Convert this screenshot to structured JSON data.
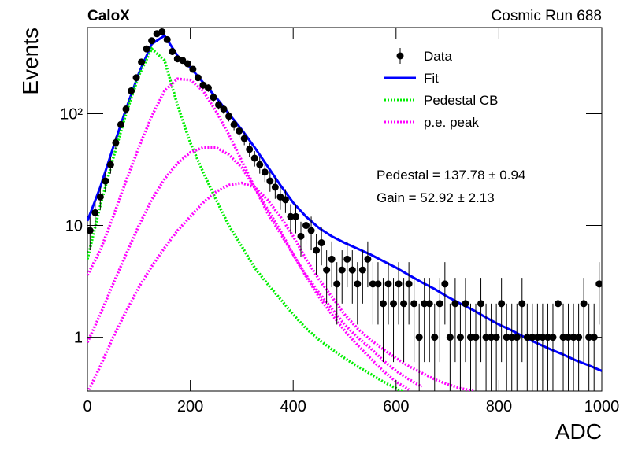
{
  "chart_data": {
    "type": "histogram-fit",
    "title": "CaloX",
    "subtitle": "Cosmic Run 688",
    "x_label": "ADC",
    "y_label": "Events",
    "annotations": [
      "Pedestal = 137.78 ± 0.94",
      "Gain = 52.92 ± 2.13"
    ],
    "log_y": true,
    "xlim": [
      0,
      1000
    ],
    "ylim": [
      0.33,
      590
    ],
    "xticks": [
      0,
      200,
      400,
      600,
      800,
      1000
    ],
    "yticks": [
      1,
      10,
      {
        "value": 100,
        "label": "10²"
      }
    ],
    "series": [
      {
        "name": "Data",
        "style": "points",
        "color": "#000000",
        "x": [
          5,
          15,
          25,
          35,
          45,
          55,
          65,
          75,
          85,
          95,
          105,
          115,
          125,
          135,
          145,
          155,
          165,
          175,
          185,
          195,
          205,
          215,
          225,
          235,
          245,
          255,
          265,
          275,
          285,
          295,
          305,
          315,
          325,
          335,
          345,
          355,
          365,
          375,
          385,
          395,
          405,
          415,
          425,
          435,
          445,
          455,
          465,
          475,
          485,
          495,
          505,
          515,
          525,
          535,
          545,
          555,
          565,
          575,
          585,
          595,
          605,
          615,
          625,
          635,
          645,
          655,
          665,
          675,
          685,
          695,
          705,
          715,
          725,
          735,
          745,
          755,
          765,
          775,
          785,
          795,
          805,
          815,
          825,
          835,
          845,
          855,
          865,
          875,
          885,
          895,
          905,
          915,
          925,
          935,
          945,
          955,
          965,
          975,
          985,
          995
        ],
        "values": [
          9,
          13,
          18,
          25,
          35,
          55,
          80,
          110,
          160,
          210,
          290,
          380,
          450,
          520,
          540,
          460,
          360,
          310,
          300,
          280,
          250,
          210,
          180,
          170,
          140,
          120,
          110,
          95,
          80,
          70,
          60,
          48,
          40,
          35,
          30,
          25,
          22,
          18,
          17,
          12,
          12,
          8,
          10,
          9,
          6,
          7,
          4,
          5,
          3,
          4,
          5,
          4,
          3,
          4,
          5,
          3,
          3,
          2,
          3,
          2,
          3,
          2,
          3,
          2,
          1,
          2,
          2,
          1,
          2,
          3,
          1,
          2,
          1,
          2,
          1,
          1,
          2,
          1,
          1,
          1,
          2,
          1,
          1,
          1,
          2,
          1,
          1,
          1,
          1,
          1,
          1,
          2,
          1,
          1,
          1,
          1,
          2,
          1,
          1,
          3
        ],
        "errors": [
          3,
          3.6,
          4.2,
          5,
          5.9,
          7.4,
          8.9,
          10.5,
          12.6,
          14.5,
          17,
          19.5,
          21.2,
          22.8,
          23.2,
          21.4,
          19,
          17.6,
          17.3,
          16.7,
          15.8,
          14.5,
          13.4,
          13,
          11.8,
          11,
          10.5,
          9.7,
          8.9,
          8.4,
          7.7,
          6.9,
          6.3,
          5.9,
          5.5,
          5,
          4.7,
          4.2,
          4.1,
          3.5,
          3.5,
          2.8,
          3.2,
          3,
          2.4,
          2.6,
          2,
          2.2,
          1.7,
          2,
          2.2,
          2,
          1.7,
          2,
          2.2,
          1.7,
          1.7,
          1.4,
          1.7,
          1.4,
          1.7,
          1.4,
          1.7,
          1.4,
          1,
          1.4,
          1.4,
          1,
          1.4,
          1.7,
          1,
          1.4,
          1,
          1.4,
          1,
          1,
          1.4,
          1,
          1,
          1,
          1.4,
          1,
          1,
          1,
          1.4,
          1,
          1,
          1,
          1,
          1,
          1,
          1.4,
          1,
          1,
          1,
          1,
          1.4,
          1,
          1,
          1.7
        ]
      },
      {
        "name": "Fit",
        "style": "solid",
        "color": "#0000ff",
        "x": [
          0,
          25,
          50,
          75,
          100,
          125,
          150,
          175,
          200,
          225,
          250,
          275,
          300,
          325,
          350,
          375,
          400,
          425,
          450,
          475,
          500,
          525,
          550,
          575,
          600,
          625,
          650,
          675,
          700,
          725,
          750,
          775,
          800,
          825,
          850,
          875,
          900,
          925,
          950,
          975,
          1000
        ],
        "values": [
          11,
          22,
          50,
          110,
          230,
          420,
          500,
          330,
          260,
          190,
          140,
          100,
          72,
          50,
          34,
          23,
          16,
          12,
          9.5,
          8,
          7,
          6.2,
          5.5,
          4.8,
          4.2,
          3.6,
          3.1,
          2.7,
          2.3,
          2,
          1.75,
          1.5,
          1.3,
          1.15,
          1,
          0.88,
          0.78,
          0.7,
          0.62,
          0.56,
          0.5
        ]
      },
      {
        "name": "Pedestal CB",
        "style": "dotted",
        "color": "#00ee00",
        "x": [
          0,
          25,
          50,
          75,
          100,
          125,
          150,
          175,
          200,
          225,
          250,
          275,
          300,
          325,
          350,
          375,
          400,
          425,
          450,
          475,
          500,
          525,
          550,
          575,
          600,
          625
        ],
        "values": [
          5,
          15,
          40,
          100,
          220,
          380,
          300,
          120,
          55,
          30,
          17,
          10,
          6.5,
          4.2,
          3,
          2.2,
          1.6,
          1.2,
          0.95,
          0.78,
          0.65,
          0.55,
          0.47,
          0.4,
          0.35,
          0.3
        ]
      },
      {
        "name": "p.e. peak",
        "style": "dotted",
        "color": "#ff00ff",
        "x": [
          0,
          25,
          50,
          75,
          100,
          125,
          150,
          175,
          200,
          225,
          250,
          275,
          300,
          325,
          350,
          375,
          400,
          425,
          450,
          475,
          500,
          525,
          550,
          575,
          600,
          625,
          650
        ],
        "values": [
          3.6,
          6,
          12,
          25,
          50,
          95,
          160,
          205,
          200,
          160,
          105,
          65,
          38,
          22,
          13,
          8.5,
          5.5,
          3.6,
          2.5,
          1.8,
          1.3,
          1,
          0.8,
          0.62,
          0.5,
          0.42,
          0.36
        ]
      },
      {
        "name": "p.e. peak",
        "style": "dotted",
        "color": "#ff00ff",
        "x": [
          0,
          25,
          50,
          75,
          100,
          125,
          150,
          175,
          200,
          225,
          250,
          275,
          300,
          325,
          350,
          375,
          400,
          425,
          450,
          475,
          500,
          525,
          550,
          575,
          600,
          625
        ],
        "values": [
          0.9,
          1.6,
          3,
          5.5,
          10,
          17,
          26,
          36,
          45,
          50,
          50,
          43,
          33,
          22,
          14,
          9,
          5.5,
          3.5,
          2.3,
          1.6,
          1.15,
          0.85,
          0.65,
          0.5,
          0.4,
          0.34
        ]
      },
      {
        "name": "p.e. peak",
        "style": "dotted",
        "color": "#ff00ff",
        "x": [
          0,
          25,
          50,
          75,
          100,
          125,
          150,
          175,
          200,
          225,
          250,
          275,
          300,
          325,
          350,
          375,
          400,
          425,
          450,
          475,
          500,
          525,
          550,
          575,
          600,
          625,
          650,
          675,
          700,
          725,
          750
        ],
        "values": [
          0.32,
          0.55,
          1,
          1.7,
          2.8,
          4.3,
          6.3,
          9,
          12,
          16,
          20,
          23,
          24,
          22,
          17,
          12,
          8,
          5,
          3.3,
          2.3,
          1.6,
          1.2,
          0.95,
          0.78,
          0.65,
          0.55,
          0.48,
          0.42,
          0.38,
          0.35,
          0.33
        ]
      }
    ]
  }
}
